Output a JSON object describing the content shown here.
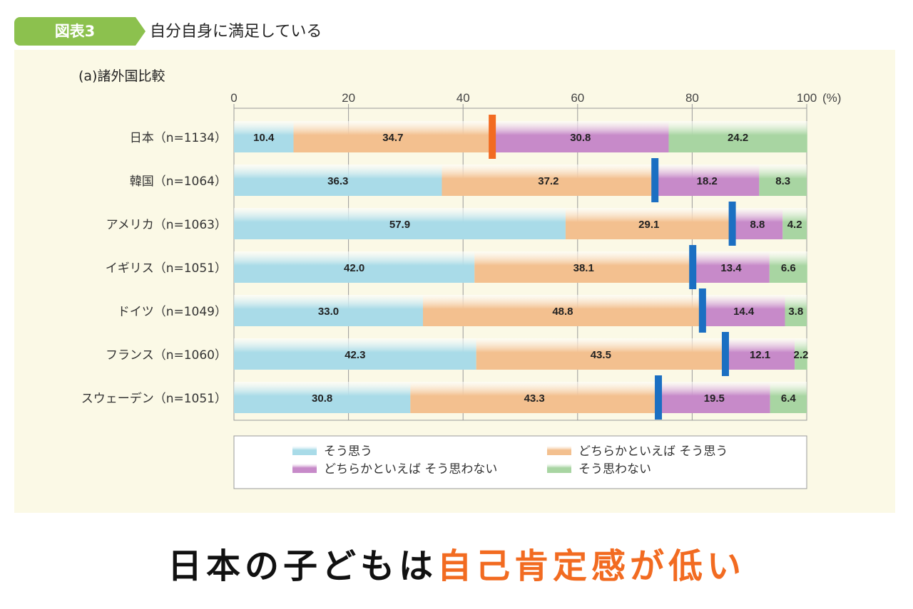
{
  "figure": {
    "badge": "図表3",
    "title": "自分自身に満足している",
    "subtitle": "(a)諸外国比較"
  },
  "caption": {
    "part1": "日本の子どもは",
    "part2": "自己肯定感が低い"
  },
  "colors": {
    "accent": "#f26b21",
    "marker_japan": "#f26b21",
    "marker_other": "#1b6fc2",
    "badge": "#8cc14e"
  },
  "chart_data": {
    "type": "bar",
    "orientation": "horizontal",
    "stacked": true,
    "xlim": [
      0,
      100
    ],
    "xticks": [
      0,
      20,
      40,
      60,
      80,
      100
    ],
    "unit_label": "(%)",
    "categories": [
      "日本（n=1134）",
      "韓国（n=1064）",
      "アメリカ（n=1063）",
      "イギリス（n=1051）",
      "ドイツ（n=1049）",
      "フランス（n=1060）",
      "スウェーデン（n=1051）"
    ],
    "series": [
      {
        "name": "そう思う",
        "color": "#a9dbe8",
        "values": [
          10.4,
          36.3,
          57.9,
          42.0,
          33.0,
          42.3,
          30.8
        ]
      },
      {
        "name": "どちらかといえば そう思う",
        "color": "#f3c08f",
        "values": [
          34.7,
          37.2,
          29.1,
          38.1,
          48.8,
          43.5,
          43.3
        ]
      },
      {
        "name": "どちらかといえば そう思わない",
        "color": "#c78ac9",
        "values": [
          30.8,
          18.2,
          8.8,
          13.4,
          14.4,
          12.1,
          19.5
        ]
      },
      {
        "name": "そう思わない",
        "color": "#a8d5a2",
        "values": [
          24.2,
          8.3,
          4.2,
          6.6,
          3.8,
          2.2,
          6.4
        ]
      }
    ],
    "labels": [
      [
        "10.4",
        "34.7",
        "30.8",
        "24.2"
      ],
      [
        "36.3",
        "37.2",
        "18.2",
        "8.3"
      ],
      [
        "57.9",
        "29.1",
        "8.8",
        "4.2"
      ],
      [
        "42.0",
        "38.1",
        "13.4",
        "6.6"
      ],
      [
        "33.0",
        "48.8",
        "14.4",
        "3.8"
      ],
      [
        "42.3",
        "43.5",
        "12.1",
        "2.2"
      ],
      [
        "30.8",
        "43.3",
        "19.5",
        "6.4"
      ]
    ],
    "legend": [
      "そう思う",
      "どちらかといえば そう思う",
      "どちらかといえば そう思わない",
      "そう思わない"
    ]
  }
}
